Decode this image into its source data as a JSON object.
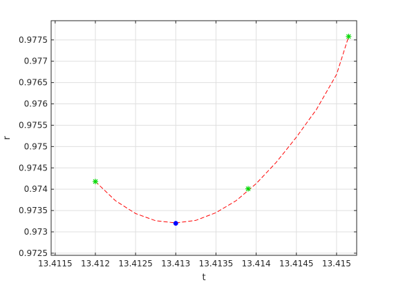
{
  "chart_data": {
    "type": "line",
    "xlabel": "t",
    "ylabel": "r",
    "xlim": [
      13.41145,
      13.41525
    ],
    "ylim": [
      0.97245,
      0.97795
    ],
    "grid": true,
    "x_ticks": [
      "13.4115",
      "13.412",
      "13.4125",
      "13.413",
      "13.4135",
      "13.414",
      "13.4145",
      "13.415"
    ],
    "y_ticks": [
      "0.9725",
      "0.973",
      "0.9735",
      "0.974",
      "0.9745",
      "0.975",
      "0.9755",
      "0.976",
      "0.9765",
      "0.977",
      "0.9775"
    ],
    "series": [
      {
        "style": "dashed-line",
        "color": "#ff0000",
        "x": [
          13.412,
          13.41225,
          13.4125,
          13.41275,
          13.413,
          13.41325,
          13.4135,
          13.41375,
          13.414,
          13.41425,
          13.4145,
          13.41475,
          13.415,
          13.41515
        ],
        "y": [
          0.97418,
          0.97373,
          0.97343,
          0.97326,
          0.97321,
          0.97327,
          0.97345,
          0.97373,
          0.97413,
          0.97463,
          0.97522,
          0.97587,
          0.97669,
          0.97758
        ]
      },
      {
        "style": "star-markers",
        "color": "#00d800",
        "x": [
          13.412,
          13.4139,
          13.41515
        ],
        "y": [
          0.97418,
          0.97401,
          0.97758
        ]
      },
      {
        "style": "dot-marker",
        "color": "#0000ff",
        "x": [
          13.413
        ],
        "y": [
          0.9732
        ]
      }
    ]
  }
}
